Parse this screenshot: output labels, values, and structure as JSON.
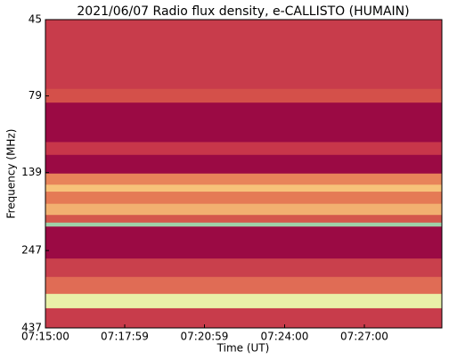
{
  "chart_data": {
    "type": "spectrogram",
    "title": "2021/06/07  Radio flux density, e-CALLISTO (HUMAIN)",
    "xlabel": "Time (UT)",
    "ylabel": "Frequency (MHz)",
    "xlim": [
      26100,
      26995
    ],
    "xticks": [
      {
        "value": 26100,
        "label": "07:15:00"
      },
      {
        "value": 26279,
        "label": "07:17:59"
      },
      {
        "value": 26459,
        "label": "07:20:59"
      },
      {
        "value": 26640,
        "label": "07:24:00"
      },
      {
        "value": 26820,
        "label": "07:27:00"
      }
    ],
    "ylim": [
      437,
      45
    ],
    "ylog": true,
    "yticks": [
      45,
      79,
      139,
      247,
      437
    ],
    "bands": [
      {
        "from": 45,
        "to": 75,
        "color": "#c83c4b"
      },
      {
        "from": 75,
        "to": 83,
        "color": "#d4504a"
      },
      {
        "from": 83,
        "to": 111,
        "color": "#9b0a44"
      },
      {
        "from": 111,
        "to": 122,
        "color": "#c8364a"
      },
      {
        "from": 122,
        "to": 140,
        "color": "#9b0a44"
      },
      {
        "from": 140,
        "to": 152,
        "color": "#e8845a"
      },
      {
        "from": 152,
        "to": 160,
        "color": "#f7c27a"
      },
      {
        "from": 160,
        "to": 175,
        "color": "#e57a55"
      },
      {
        "from": 175,
        "to": 190,
        "color": "#f2b070"
      },
      {
        "from": 190,
        "to": 201,
        "color": "#d4574c"
      },
      {
        "from": 201,
        "to": 207,
        "color": "#9fd0a8"
      },
      {
        "from": 207,
        "to": 262,
        "color": "#9b0a44"
      },
      {
        "from": 262,
        "to": 300,
        "color": "#c9404c"
      },
      {
        "from": 300,
        "to": 340,
        "color": "#e06c55"
      },
      {
        "from": 340,
        "to": 378,
        "color": "#e9f0a8"
      },
      {
        "from": 378,
        "to": 437,
        "color": "#c83c4b"
      }
    ]
  }
}
